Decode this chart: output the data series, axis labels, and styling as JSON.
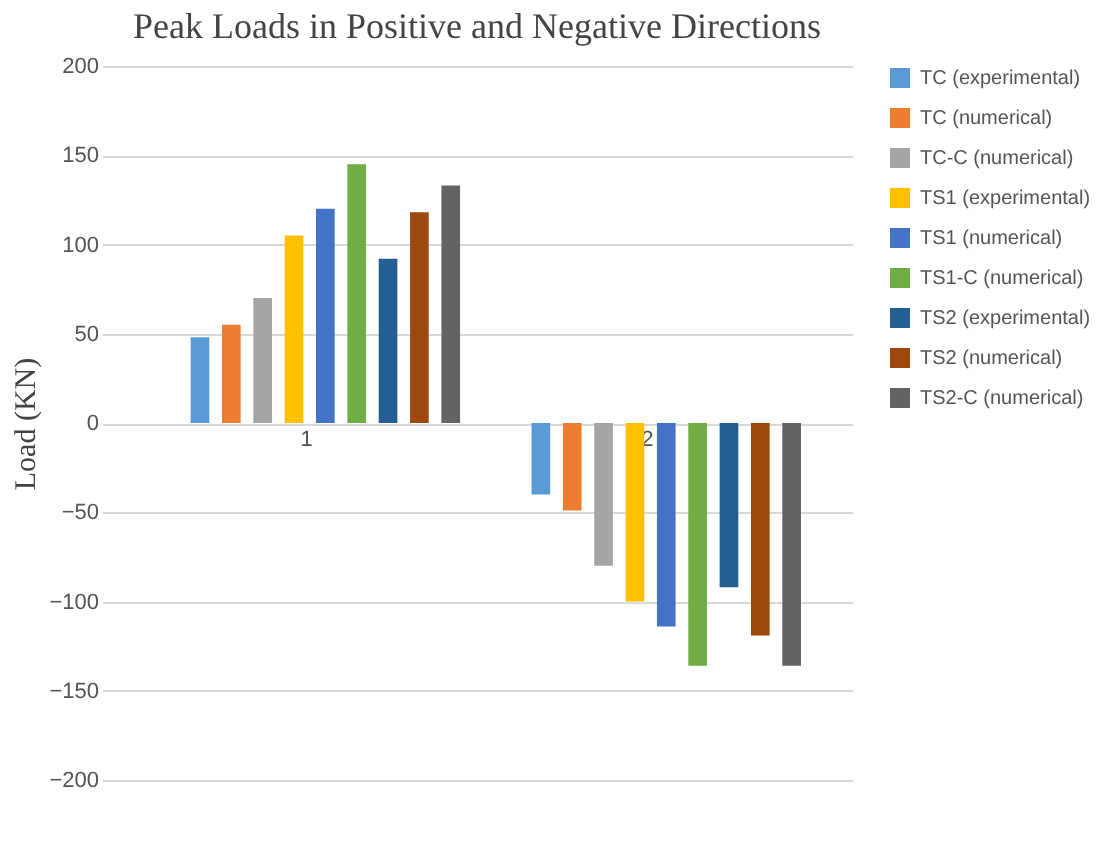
{
  "chart_data": {
    "type": "bar",
    "title": "Peak Loads in Positive and Negative Directions",
    "ylabel": "Load (KN)",
    "categories": [
      "1",
      "2"
    ],
    "series": [
      {
        "name": "TC (experimental)",
        "color": "#5b9bd5",
        "values": [
          48,
          -40
        ]
      },
      {
        "name": "TC (numerical)",
        "color": "#ed7d31",
        "values": [
          55,
          -49
        ]
      },
      {
        "name": "TC-C (numerical)",
        "color": "#a5a5a5",
        "values": [
          70,
          -80
        ]
      },
      {
        "name": "TS1 (experimental)",
        "color": "#ffc000",
        "values": [
          105,
          -100
        ]
      },
      {
        "name": "TS1 (numerical)",
        "color": "#4472c4",
        "values": [
          120,
          -114
        ]
      },
      {
        "name": "TS1-C (numerical)",
        "color": "#70ad47",
        "values": [
          145,
          -136
        ]
      },
      {
        "name": "TS2 (experimental)",
        "color": "#255e91",
        "values": [
          92,
          -92
        ]
      },
      {
        "name": "TS2 (numerical)",
        "color": "#9e480e",
        "values": [
          118,
          -119
        ]
      },
      {
        "name": "TS2-C (numerical)",
        "color": "#636363",
        "values": [
          133,
          -136
        ]
      }
    ],
    "ylim": [
      -200,
      200
    ],
    "yticks": [
      -200,
      -150,
      -100,
      -50,
      0,
      50,
      100,
      150,
      200
    ],
    "grid": "y",
    "legend": "right"
  }
}
